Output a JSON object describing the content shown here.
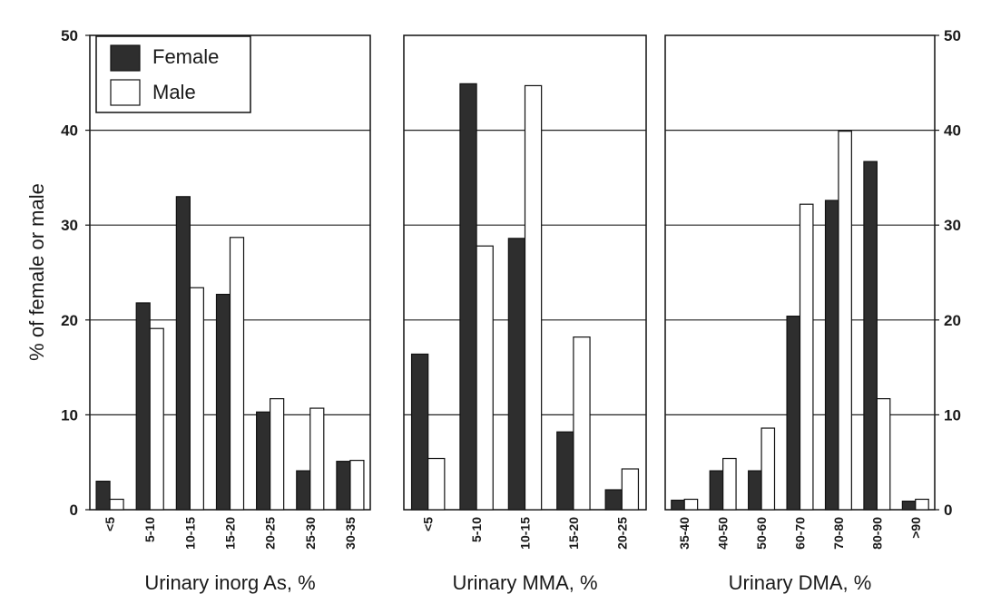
{
  "colors": {
    "female": "#2e2e2e",
    "male": "#ffffff",
    "stroke": "#111111",
    "grid": "#222222"
  },
  "chart_data": [
    {
      "type": "bar",
      "xlabel": "Urinary inorg As, %",
      "ylabel": "% of female or male",
      "ylim": [
        0,
        50
      ],
      "yticks": [
        0,
        10,
        20,
        30,
        40,
        50
      ],
      "grid": true,
      "categories": [
        "<5",
        "5-10",
        "10-15",
        "15-20",
        "20-25",
        "25-30",
        "30-35"
      ],
      "series": [
        {
          "name": "Female",
          "values": [
            3,
            21.8,
            33,
            22.7,
            10.3,
            4.1,
            5.1
          ]
        },
        {
          "name": "Male",
          "values": [
            1.1,
            19.1,
            23.4,
            28.7,
            11.7,
            10.7,
            5.2
          ]
        }
      ],
      "legend": {
        "placement": "top-left",
        "entries": [
          "Female",
          "Male"
        ]
      }
    },
    {
      "type": "bar",
      "xlabel": "Urinary MMA, %",
      "ylim": [
        0,
        50
      ],
      "grid": true,
      "categories": [
        "<5",
        "5-10",
        "10-15",
        "15-20",
        "20-25"
      ],
      "series": [
        {
          "name": "Female",
          "values": [
            16.4,
            44.9,
            28.6,
            8.2,
            2.1
          ]
        },
        {
          "name": "Male",
          "values": [
            5.4,
            27.8,
            44.7,
            18.2,
            4.3
          ]
        }
      ]
    },
    {
      "type": "bar",
      "xlabel": "Urinary DMA, %",
      "ylim": [
        0,
        50
      ],
      "yticks": [
        0,
        10,
        20,
        30,
        40,
        50
      ],
      "grid": true,
      "categories": [
        "35-40",
        "40-50",
        "50-60",
        "60-70",
        "70-80",
        "80-90",
        ">90"
      ],
      "series": [
        {
          "name": "Female",
          "values": [
            1,
            4.1,
            4.1,
            20.4,
            32.6,
            36.7,
            0.9
          ]
        },
        {
          "name": "Male",
          "values": [
            1.1,
            5.4,
            8.6,
            32.2,
            39.9,
            11.7,
            1.1
          ]
        }
      ]
    }
  ]
}
